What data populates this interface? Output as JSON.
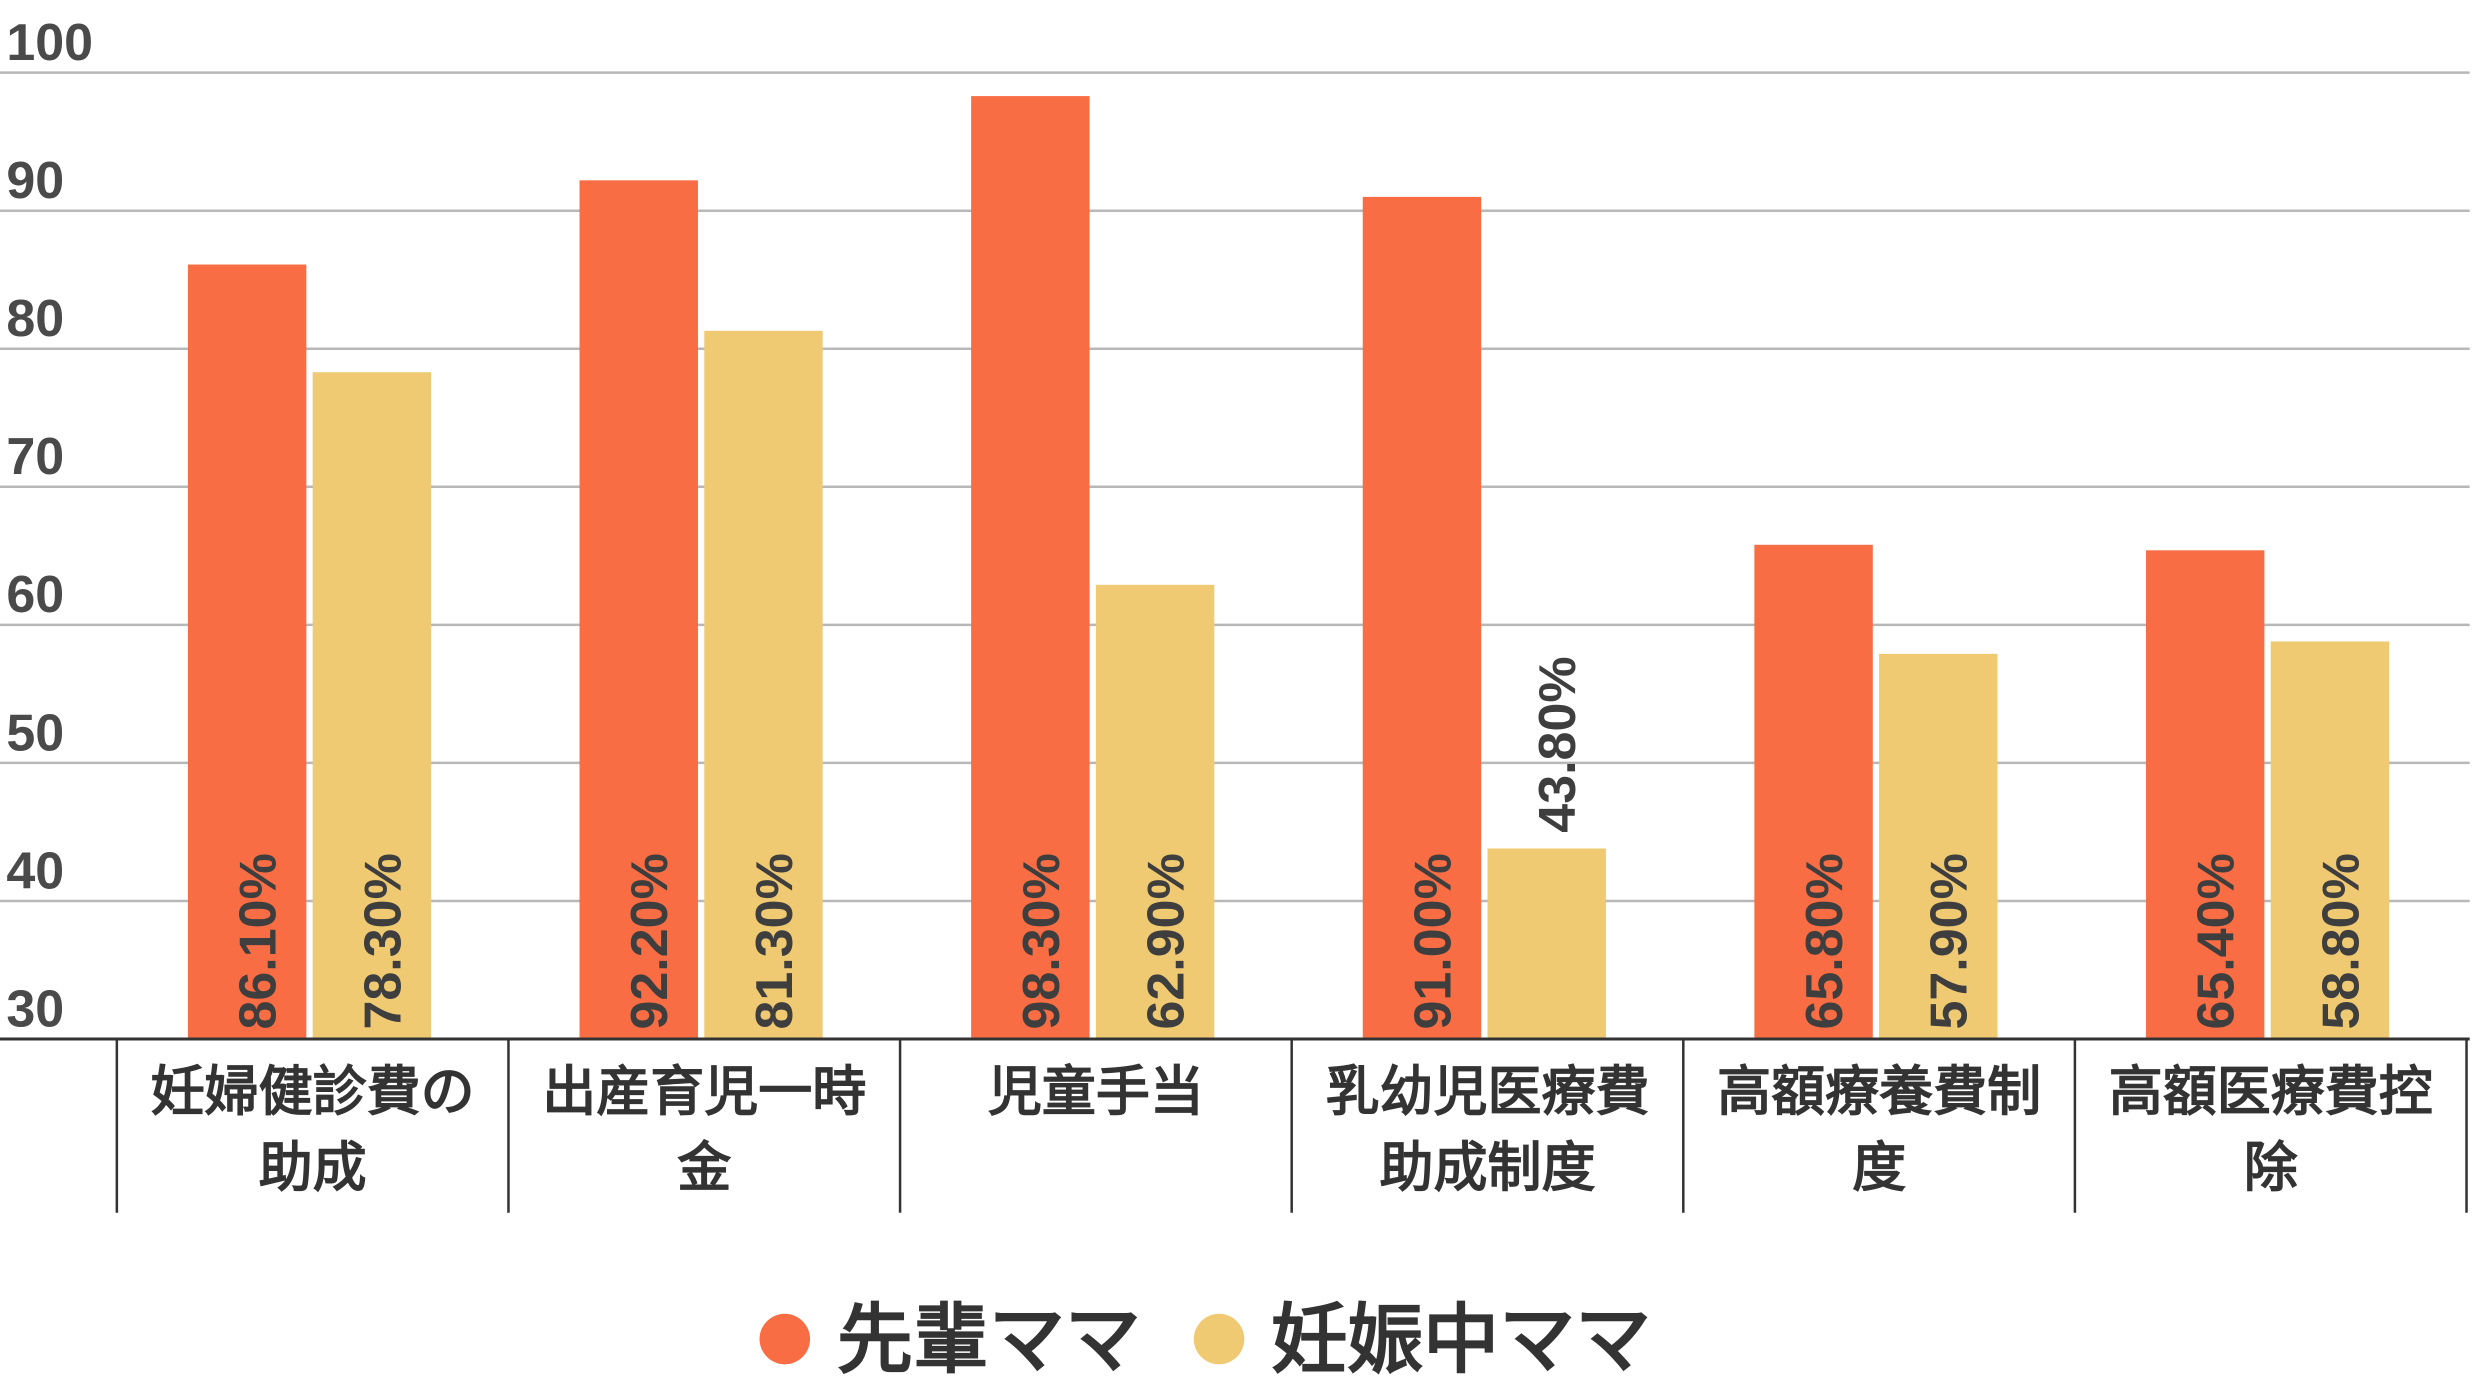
{
  "chart_data": {
    "type": "bar",
    "categories": [
      [
        "妊婦健診費の",
        "助成"
      ],
      [
        "出産育児一時",
        "金"
      ],
      [
        "児童手当"
      ],
      [
        "乳幼児医療費",
        "助成制度"
      ],
      [
        "高額療養費制",
        "度"
      ],
      [
        "高額医療費控",
        "除"
      ]
    ],
    "series": [
      {
        "name": "先輩ママ",
        "color": "#f86d43",
        "values": [
          86.1,
          92.2,
          98.3,
          91.0,
          65.8,
          65.4
        ],
        "labels": [
          "86.10%",
          "92.20%",
          "98.30%",
          "91.00%",
          "65.80%",
          "65.40%"
        ]
      },
      {
        "name": "妊娠中ママ",
        "color": "#efca72",
        "values": [
          78.3,
          81.3,
          62.9,
          43.8,
          57.9,
          58.8
        ],
        "labels": [
          "78.30%",
          "81.30%",
          "62.90%",
          "43.80%",
          "57.90%",
          "58.80%"
        ]
      }
    ],
    "ylim": [
      30,
      100
    ],
    "yticks": [
      "30",
      "40",
      "50",
      "60",
      "70",
      "80",
      "90",
      "100"
    ],
    "grid": true,
    "legend": "bottom-center"
  }
}
